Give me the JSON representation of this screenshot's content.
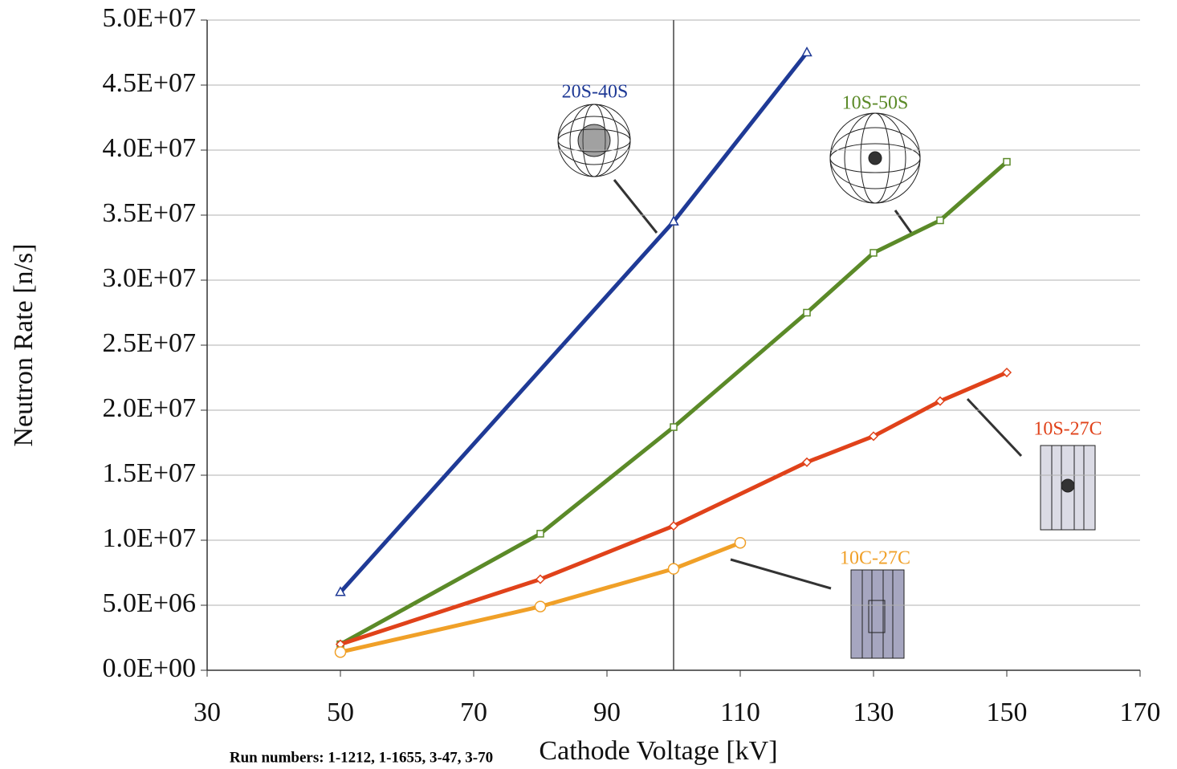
{
  "chart_data": {
    "type": "line",
    "x_label": "Cathode Voltage [kV]",
    "y_label": "Neutron Rate [n/s]",
    "footnote": "Run numbers: 1-1212, 1-1655, 3-47, 3-70",
    "xlim": [
      30,
      170
    ],
    "xticks": [
      30,
      50,
      70,
      90,
      110,
      130,
      150,
      170
    ],
    "ylim": [
      0,
      50000000
    ],
    "yticks": [
      {
        "value": 0,
        "label": "0.0E+00"
      },
      {
        "value": 5000000,
        "label": "5.0E+06"
      },
      {
        "value": 10000000,
        "label": "1.0E+07"
      },
      {
        "value": 15000000,
        "label": "1.5E+07"
      },
      {
        "value": 20000000,
        "label": "2.0E+07"
      },
      {
        "value": 25000000,
        "label": "2.5E+07"
      },
      {
        "value": 30000000,
        "label": "3.0E+07"
      },
      {
        "value": 35000000,
        "label": "3.5E+07"
      },
      {
        "value": 40000000,
        "label": "4.0E+07"
      },
      {
        "value": 45000000,
        "label": "4.5E+07"
      },
      {
        "value": 50000000,
        "label": "5.0E+07"
      }
    ],
    "grid": true,
    "vline_x": 100,
    "series": [
      {
        "name": "20S-40S",
        "color": "#1f3a96",
        "marker": "triangle",
        "x": [
          50,
          100,
          120
        ],
        "values": [
          6000000,
          34500000,
          47500000
        ]
      },
      {
        "name": "10S-50S",
        "color": "#5b8a28",
        "marker": "square",
        "x": [
          50,
          80,
          100,
          120,
          130,
          140,
          150
        ],
        "values": [
          2000000,
          10500000,
          18700000,
          27500000,
          32100000,
          34600000,
          39100000
        ]
      },
      {
        "name": "10S-27C",
        "color": "#e0421a",
        "marker": "diamond",
        "x": [
          50,
          80,
          100,
          120,
          130,
          140,
          150
        ],
        "values": [
          2000000,
          7000000,
          11100000,
          16000000,
          18000000,
          20700000,
          22900000
        ]
      },
      {
        "name": "10C-27C",
        "color": "#f0a028",
        "marker": "circle",
        "x": [
          50,
          80,
          100,
          110
        ],
        "values": [
          1400000,
          4900000,
          7800000,
          9800000
        ]
      }
    ]
  }
}
